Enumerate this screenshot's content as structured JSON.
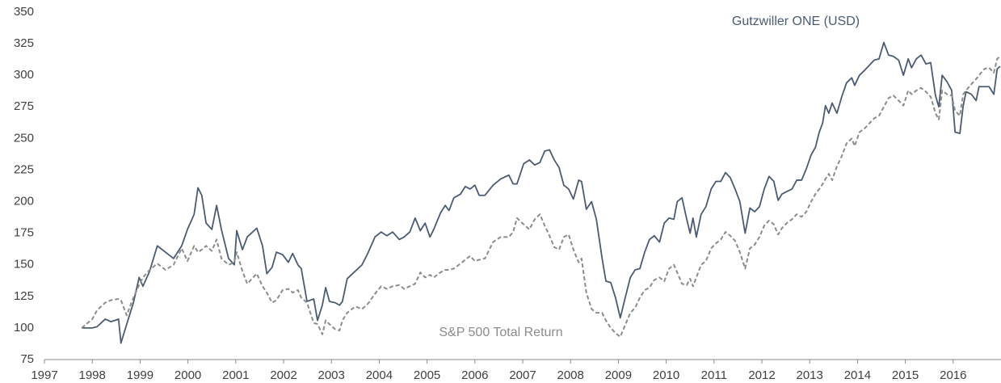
{
  "chart_data": {
    "type": "line",
    "x": [
      1997.78,
      1998.0,
      1998.1,
      1998.27,
      1998.39,
      1998.55,
      1998.6,
      1998.72,
      1998.86,
      1998.98,
      1999.06,
      1999.2,
      1999.36,
      1999.53,
      1999.7,
      1999.87,
      1999.99,
      2000.13,
      2000.21,
      2000.29,
      2000.38,
      2000.5,
      2000.6,
      2000.7,
      2000.85,
      2000.97,
      2001.02,
      2001.14,
      2001.24,
      2001.44,
      2001.56,
      2001.65,
      2001.76,
      2001.85,
      2001.98,
      2002.1,
      2002.19,
      2002.3,
      2002.37,
      2002.49,
      2002.63,
      2002.71,
      2002.81,
      2002.88,
      2002.96,
      2003.08,
      2003.17,
      2003.23,
      2003.33,
      2003.5,
      2003.64,
      2003.76,
      2003.91,
      2004.04,
      2004.16,
      2004.28,
      2004.42,
      2004.52,
      2004.64,
      2004.75,
      2004.86,
      2004.96,
      2005.06,
      2005.14,
      2005.28,
      2005.38,
      2005.46,
      2005.56,
      2005.7,
      2005.8,
      2005.9,
      2006.0,
      2006.09,
      2006.21,
      2006.38,
      2006.54,
      2006.71,
      2006.8,
      2006.88,
      2007.02,
      2007.14,
      2007.25,
      2007.36,
      2007.46,
      2007.56,
      2007.66,
      2007.76,
      2007.86,
      2007.96,
      2008.06,
      2008.17,
      2008.23,
      2008.33,
      2008.44,
      2008.54,
      2008.66,
      2008.74,
      2008.84,
      2008.94,
      2009.04,
      2009.15,
      2009.25,
      2009.35,
      2009.45,
      2009.55,
      2009.65,
      2009.75,
      2009.86,
      2009.96,
      2010.06,
      2010.16,
      2010.23,
      2010.33,
      2010.43,
      2010.5,
      2010.56,
      2010.63,
      2010.73,
      2010.83,
      2010.94,
      2011.04,
      2011.14,
      2011.24,
      2011.34,
      2011.44,
      2011.54,
      2011.65,
      2011.75,
      2011.85,
      2011.95,
      2012.05,
      2012.15,
      2012.25,
      2012.34,
      2012.42,
      2012.52,
      2012.63,
      2012.73,
      2012.83,
      2012.93,
      2013.03,
      2013.12,
      2013.2,
      2013.27,
      2013.33,
      2013.4,
      2013.47,
      2013.57,
      2013.67,
      2013.77,
      2013.88,
      2013.94,
      2014.04,
      2014.15,
      2014.25,
      2014.35,
      2014.45,
      2014.55,
      2014.65,
      2014.75,
      2014.86,
      2014.96,
      2015.06,
      2015.13,
      2015.23,
      2015.33,
      2015.43,
      2015.53,
      2015.63,
      2015.7,
      2015.77,
      2015.87,
      2015.97,
      2016.04,
      2016.14,
      2016.21,
      2016.27,
      2016.38,
      2016.48,
      2016.54,
      2016.65,
      2016.75,
      2016.85,
      2016.92,
      2016.98
    ],
    "xlim": [
      1997,
      2017
    ],
    "xticks": [
      1997,
      1998,
      1999,
      2000,
      2001,
      2002,
      2003,
      2004,
      2005,
      2006,
      2007,
      2008,
      2009,
      2010,
      2011,
      2012,
      2013,
      2014,
      2015,
      2016
    ],
    "ylim": [
      75,
      350
    ],
    "yticks": [
      75,
      100,
      125,
      150,
      175,
      200,
      225,
      250,
      275,
      300,
      325,
      350
    ],
    "grid": false,
    "series": [
      {
        "name": "Gutzwiller ONE (USD)",
        "color": "#4b5b72",
        "dashed": false,
        "values": [
          100,
          100,
          101,
          107,
          105,
          107,
          88,
          103,
          120,
          140,
          133,
          145,
          165,
          160,
          155,
          165,
          178,
          190,
          211,
          205,
          183,
          178,
          197,
          178,
          155,
          150,
          177,
          162,
          172,
          179,
          165,
          143,
          148,
          160,
          158,
          152,
          159,
          150,
          147,
          121,
          123,
          106,
          118,
          132,
          121,
          120,
          118,
          121,
          139,
          145,
          150,
          159,
          172,
          176,
          173,
          176,
          170,
          172,
          176,
          187,
          177,
          183,
          172,
          178,
          191,
          197,
          193,
          203,
          206,
          212,
          210,
          213,
          205,
          205,
          213,
          218,
          221,
          214,
          214,
          230,
          233,
          229,
          231,
          240,
          241,
          233,
          227,
          213,
          210,
          202,
          217,
          216,
          194,
          200,
          186,
          155,
          137,
          136,
          124,
          108,
          125,
          140,
          146,
          147,
          160,
          170,
          173,
          168,
          183,
          187,
          186,
          200,
          203,
          186,
          175,
          187,
          172,
          190,
          196,
          210,
          216,
          216,
          223,
          219,
          210,
          200,
          175,
          195,
          192,
          196,
          210,
          220,
          216,
          201,
          206,
          208,
          210,
          217,
          217,
          226,
          237,
          243,
          255,
          262,
          276,
          270,
          278,
          270,
          283,
          294,
          298,
          292,
          300,
          304,
          308,
          312,
          313,
          326,
          316,
          315,
          312,
          300,
          313,
          306,
          313,
          316,
          309,
          310,
          284,
          275,
          300,
          295,
          288,
          255,
          254,
          276,
          287,
          285,
          280,
          291,
          291,
          291,
          285,
          305,
          307
        ]
      },
      {
        "name": "S&P 500 Total Return",
        "color": "#8c8c8c",
        "dashed": true,
        "values": [
          100,
          107,
          114,
          120,
          122,
          123,
          122,
          110,
          124,
          134,
          140,
          146,
          151,
          146,
          150,
          163,
          153,
          165,
          160,
          162,
          165,
          161,
          170,
          155,
          150,
          152,
          160,
          145,
          135,
          143,
          133,
          128,
          120,
          122,
          130,
          131,
          128,
          130,
          124,
          120,
          104,
          103,
          95,
          106,
          103,
          99,
          98,
          106,
          112,
          117,
          115,
          119,
          127,
          133,
          131,
          133,
          134,
          131,
          133,
          135,
          144,
          140,
          142,
          140,
          144,
          146,
          146,
          147,
          151,
          154,
          157,
          153,
          154,
          155,
          168,
          172,
          172,
          176,
          187,
          182,
          178,
          186,
          190,
          181,
          173,
          164,
          162,
          172,
          174,
          162,
          152,
          155,
          128,
          115,
          112,
          112,
          106,
          100,
          96,
          93,
          103,
          112,
          116,
          124,
          130,
          132,
          138,
          140,
          137,
          147,
          150,
          144,
          135,
          134,
          139,
          133,
          140,
          150,
          153,
          163,
          167,
          170,
          176,
          173,
          169,
          160,
          147,
          163,
          166,
          172,
          181,
          185,
          182,
          174,
          179,
          183,
          186,
          190,
          188,
          192,
          200,
          206,
          210,
          214,
          218,
          222,
          217,
          228,
          236,
          246,
          250,
          244,
          255,
          258,
          262,
          266,
          268,
          275,
          282,
          284,
          280,
          276,
          288,
          285,
          288,
          290,
          287,
          283,
          270,
          265,
          288,
          285,
          284,
          272,
          268,
          285,
          288,
          293,
          297,
          300,
          305,
          306,
          302,
          313,
          315
        ]
      }
    ]
  }
}
